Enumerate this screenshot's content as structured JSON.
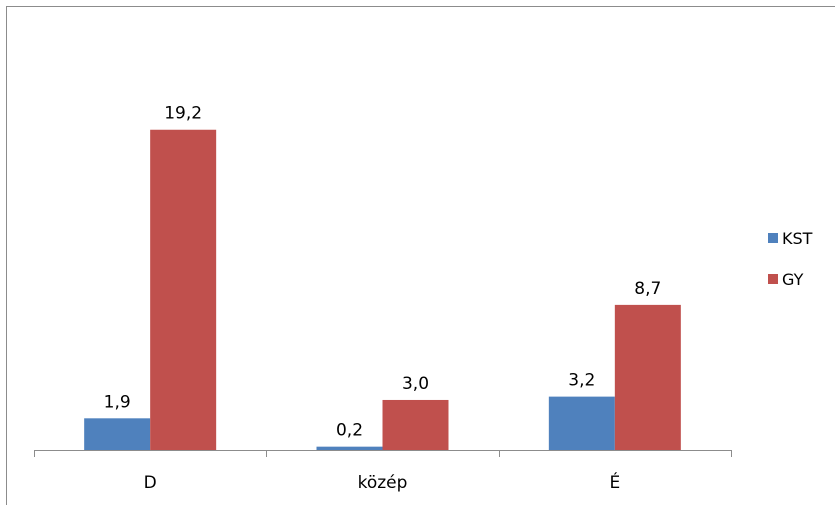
{
  "chart_data": {
    "type": "bar",
    "categories": [
      "D",
      "közép",
      "É"
    ],
    "series": [
      {
        "name": "KST",
        "color": "#4f81bd",
        "values": [
          1.9,
          0.2,
          3.2
        ],
        "labels": [
          "1,9",
          "0,2",
          "3,2"
        ]
      },
      {
        "name": "GY",
        "color": "#c0504d",
        "values": [
          19.2,
          3.0,
          8.7
        ],
        "labels": [
          "19,2",
          "3,0",
          "8,7"
        ]
      }
    ],
    "ylim": [
      0,
      22
    ],
    "grid": false,
    "legend": "right"
  }
}
